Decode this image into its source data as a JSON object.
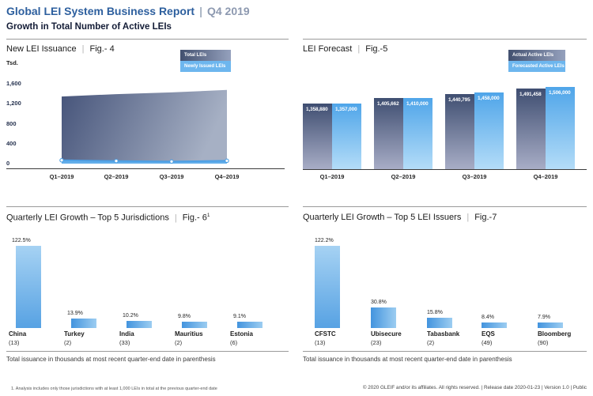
{
  "separator": "|",
  "header": {
    "title": "Global LEI System Business Report",
    "period": "Q4 2019",
    "subtitle": "Growth in Total Number of Active LEIs"
  },
  "colors": {
    "header_blue": "#2d5f9e",
    "dark_series_top": "#3f4e71",
    "dark_series_bottom": "#a9aec7",
    "light_series_top": "#4fa5e9",
    "light_series_bottom": "#b5ddf8",
    "growth_bar_blue": "#57a2e3"
  },
  "chart_data": [
    {
      "id": "fig4",
      "type": "area",
      "title": "New LEI Issuance",
      "fig_label": "Fig.- 4",
      "ylabel": "Tsd.",
      "x": [
        "Q1–2019",
        "Q2–2019",
        "Q3–2019",
        "Q4–2019"
      ],
      "yticks": [
        "1,600",
        "1,200",
        "800",
        "400",
        "0"
      ],
      "ylim": [
        0,
        1600
      ],
      "legend": [
        "Total LEIs",
        "Newly Issued LEIs"
      ],
      "legend_position": "top-right",
      "grid": false,
      "series": [
        {
          "name": "Total LEIs",
          "values": [
            1359,
            1406,
            1441,
            1491
          ]
        },
        {
          "name": "Newly Issued LEIs",
          "values": [
            67,
            53,
            41,
            57
          ]
        }
      ]
    },
    {
      "id": "fig5",
      "type": "bar",
      "title": "LEI Forecast",
      "fig_label": "Fig.-5",
      "x": [
        "Q1–2019",
        "Q2–2019",
        "Q3–2019",
        "Q4–2019"
      ],
      "legend": [
        "Actual Active LEIs",
        "Forecasted Active LEIs"
      ],
      "legend_position": "top-right",
      "grid": false,
      "series": [
        {
          "name": "Actual Active LEIs",
          "values": [
            1358880,
            1405662,
            1440795,
            1491458
          ],
          "labels": [
            "1,358,880",
            "1,405,662",
            "1,440,795",
            "1,491,458"
          ]
        },
        {
          "name": "Forecasted Active LEIs",
          "values": [
            1357000,
            1410000,
            1458000,
            1506000
          ],
          "labels": [
            "1,357,000",
            "1,410,000",
            "1,458,000",
            "1,506,000"
          ]
        }
      ]
    },
    {
      "id": "fig6",
      "type": "bar",
      "title": "Quarterly LEI Growth – Top 5 Jurisdictions",
      "fig_label": "Fig.- 6",
      "fig_sup": "1",
      "categories": [
        "China",
        "Turkey",
        "India",
        "Mauritius",
        "Estonia"
      ],
      "counts": [
        "(13)",
        "(2)",
        "(33)",
        "(2)",
        "(6)"
      ],
      "values": [
        122.5,
        13.9,
        10.2,
        9.8,
        9.1
      ],
      "value_labels": [
        "122.5%",
        "13.9%",
        "10.2%",
        "9.8%",
        "9.1%"
      ],
      "unit": "%"
    },
    {
      "id": "fig7",
      "type": "bar",
      "title": "Quarterly LEI Growth – Top 5 LEI Issuers",
      "fig_label": "Fig.-7",
      "categories": [
        "CFSTC",
        "Ubisecure",
        "Tabasbank",
        "EQS",
        "Bloomberg"
      ],
      "counts": [
        "(13)",
        "(23)",
        "(2)",
        "(49)",
        "(90)"
      ],
      "values": [
        122.2,
        30.8,
        15.8,
        8.4,
        7.9
      ],
      "value_labels": [
        "122.2%",
        "30.8%",
        "15.8%",
        "8.4%",
        "7.9%"
      ],
      "unit": "%"
    }
  ],
  "footer": {
    "caption": "Total issuance in thousands at most recent quarter-end date in parenthesis",
    "footnote": "1. Analysis includes only those jurisdictions with at least 1,000 LEIs in total at the previous quarter-end date",
    "copyright": "© 2020 GLEIF and/or its affiliates. All rights reserved.  |  Release date 2020-01-23  |  Version 1.0  |  Public"
  }
}
